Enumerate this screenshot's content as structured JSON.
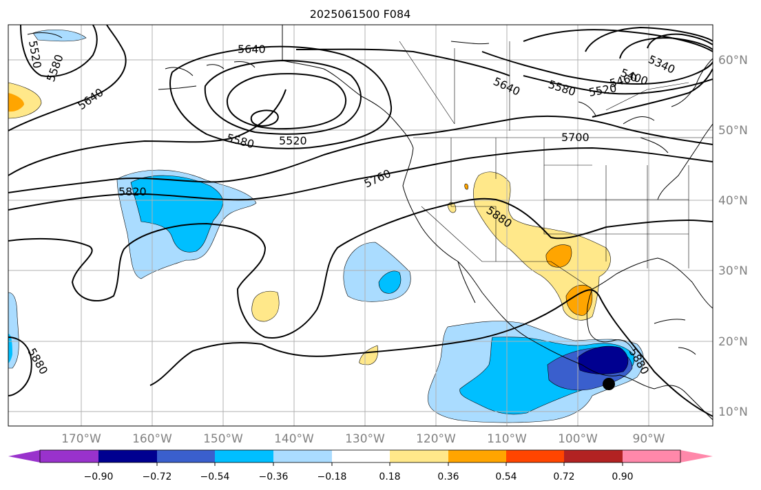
{
  "title": "2025061500 F084",
  "lon_labels": [
    "170°W",
    "160°W",
    "150°W",
    "140°W",
    "130°W",
    "120°W",
    "110°W",
    "100°W",
    "90°W"
  ],
  "lat_labels": [
    "60°N",
    "50°N",
    "40°N",
    "30°N",
    "20°N",
    "10°N"
  ],
  "colorbar": {
    "ticks": [
      "−0.90",
      "−0.72",
      "−0.54",
      "−0.36",
      "−0.18",
      "0.18",
      "0.36",
      "0.54",
      "0.72",
      "0.90"
    ],
    "colors": [
      "#000090",
      "#3a5fcd",
      "#00bfff",
      "#aadcff",
      "#ffffff",
      "#ffe88a",
      "#ffa500",
      "#ff4500",
      "#b22222",
      "#ff88aa"
    ],
    "under_color": "#9932cc",
    "over_color": "#ff88aa"
  },
  "contour_labels": [
    "5520",
    "5580",
    "5640",
    "5640",
    "5520",
    "5580",
    "5640",
    "5580",
    "5520",
    "5400",
    "5460",
    "5340",
    "5700",
    "5760",
    "5820",
    "5880",
    "5880",
    "5880"
  ],
  "marker": "storm-center"
}
